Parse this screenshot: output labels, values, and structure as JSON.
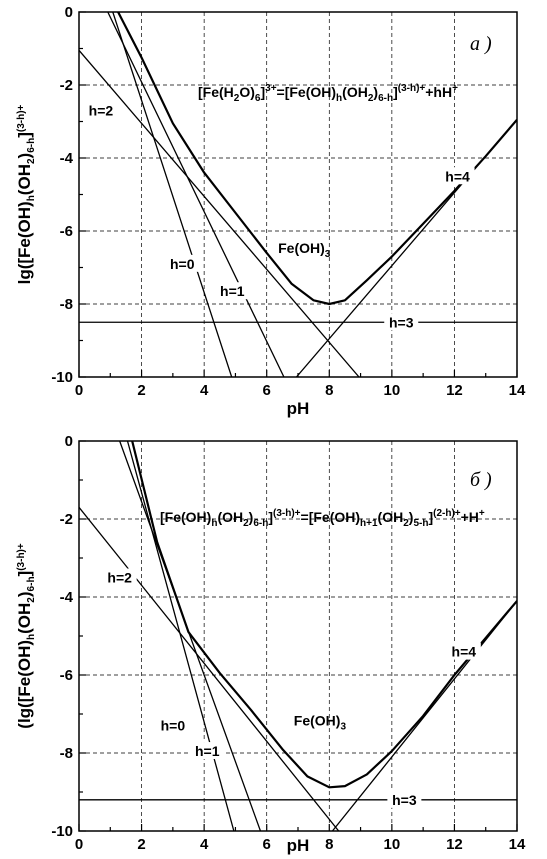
{
  "chart_data": [
    {
      "type": "line",
      "panel_letter": "a )",
      "xlabel": "pH",
      "ylabel": "lg([Fe(OH)h(OH2)6-h](3-h)+",
      "ylabel_parts": [
        {
          "t": "lg([Fe(OH)",
          "k": "n"
        },
        {
          "t": "h",
          "k": "sub"
        },
        {
          "t": "(OH",
          "k": "n"
        },
        {
          "t": "2",
          "k": "sub"
        },
        {
          "t": ")",
          "k": "n"
        },
        {
          "t": "6-h",
          "k": "sub"
        },
        {
          "t": "]",
          "k": "n"
        },
        {
          "t": "(3-h)+",
          "k": "sup"
        }
      ],
      "equation": "[Fe(H2O)6]3+=[Fe(OH)h(OH2)6-h](3-h)++hH+",
      "equation_parts": [
        {
          "t": "[Fe(H",
          "k": "n"
        },
        {
          "t": "2",
          "k": "sub"
        },
        {
          "t": "O)",
          "k": "n"
        },
        {
          "t": "6",
          "k": "sub"
        },
        {
          "t": "]",
          "k": "n"
        },
        {
          "t": "3+",
          "k": "sup"
        },
        {
          "t": "=[Fe(OH)",
          "k": "n"
        },
        {
          "t": "h",
          "k": "sub"
        },
        {
          "t": "(OH",
          "k": "n"
        },
        {
          "t": "2",
          "k": "sub"
        },
        {
          "t": ")",
          "k": "n"
        },
        {
          "t": "6-h",
          "k": "sub"
        },
        {
          "t": "]",
          "k": "n"
        },
        {
          "t": "(3-h)+",
          "k": "sup"
        },
        {
          "t": "+hH",
          "k": "n"
        },
        {
          "t": "+",
          "k": "sup"
        }
      ],
      "xlim": [
        0,
        14
      ],
      "ylim": [
        -10,
        0
      ],
      "xticks": [
        0,
        2,
        4,
        6,
        8,
        10,
        12,
        14
      ],
      "yticks": [
        0,
        -2,
        -4,
        -6,
        -8,
        -10
      ],
      "grid": true,
      "lines": [
        {
          "label": "h=0",
          "x": [
            1.08,
            4.88
          ],
          "y": [
            0,
            -10
          ]
        },
        {
          "label": "h=1",
          "x": [
            0.92,
            6.55
          ],
          "y": [
            0,
            -10
          ]
        },
        {
          "label": "h=2",
          "x": [
            0,
            8.95
          ],
          "y": [
            -1.05,
            -10
          ]
        },
        {
          "label": "h=3",
          "x": [
            0,
            14
          ],
          "y": [
            -8.5,
            -8.5
          ]
        },
        {
          "label": "h=4",
          "x": [
            6.95,
            14
          ],
          "y": [
            -10,
            -2.95
          ]
        }
      ],
      "envelope": {
        "label": "Fe(OH)3",
        "x": [
          1.25,
          2.0,
          3.0,
          4.0,
          5.0,
          6.0,
          6.8,
          7.5,
          8.0,
          8.5,
          9.2,
          10.0,
          11.0,
          12.0,
          13.0,
          14.0
        ],
        "y": [
          0,
          -1.25,
          -3.05,
          -4.4,
          -5.5,
          -6.6,
          -7.45,
          -7.9,
          -8.0,
          -7.9,
          -7.35,
          -6.7,
          -5.8,
          -4.9,
          -3.95,
          -2.95
        ]
      },
      "curve_labels": [
        {
          "text": "h=2",
          "x": 0.7,
          "y": -2.7
        },
        {
          "text": "h=0",
          "x": 3.3,
          "y": -6.9
        },
        {
          "text": "h=1",
          "x": 4.9,
          "y": -7.65
        },
        {
          "text": "h=3",
          "x": 10.3,
          "y": -8.5
        },
        {
          "text": "h=4",
          "x": 12.1,
          "y": -4.5
        }
      ],
      "envelope_label_parts": [
        {
          "t": "Fe(OH)",
          "k": "n"
        },
        {
          "t": "3",
          "k": "sub"
        }
      ],
      "envelope_label_pos": {
        "x": 7.2,
        "y": -6.6
      }
    },
    {
      "type": "line",
      "panel_letter": "б )",
      "xlabel": "pH",
      "ylabel": "(lg([Fe(OH)h(OH2)6-h](3-h)+",
      "ylabel_parts": [
        {
          "t": "(lg([Fe(OH)",
          "k": "n"
        },
        {
          "t": "h",
          "k": "sub"
        },
        {
          "t": "(OH",
          "k": "n"
        },
        {
          "t": "2",
          "k": "sub"
        },
        {
          "t": ")",
          "k": "n"
        },
        {
          "t": "6-h",
          "k": "sub"
        },
        {
          "t": "]",
          "k": "n"
        },
        {
          "t": "(3-h)+",
          "k": "sup"
        }
      ],
      "equation": "[Fe(OH)h(OH2)6-h](3-h)+=[Fe(OH)h+1(OH2)5-h](2-h)++H+",
      "equation_parts": [
        {
          "t": "[Fe(OH)",
          "k": "n"
        },
        {
          "t": "h",
          "k": "sub"
        },
        {
          "t": "(OH",
          "k": "n"
        },
        {
          "t": "2",
          "k": "sub"
        },
        {
          "t": ")",
          "k": "n"
        },
        {
          "t": "6-h",
          "k": "sub"
        },
        {
          "t": "]",
          "k": "n"
        },
        {
          "t": "(3-h)+",
          "k": "sup"
        },
        {
          "t": "=[Fe(OH)",
          "k": "n"
        },
        {
          "t": "h+1",
          "k": "sub"
        },
        {
          "t": "(OH",
          "k": "n"
        },
        {
          "t": "2",
          "k": "sub"
        },
        {
          "t": ")",
          "k": "n"
        },
        {
          "t": "5-h",
          "k": "sub"
        },
        {
          "t": "]",
          "k": "n"
        },
        {
          "t": "(2-h)+",
          "k": "sup"
        },
        {
          "t": "+H",
          "k": "n"
        },
        {
          "t": "+",
          "k": "sup"
        }
      ],
      "xlim": [
        0,
        14
      ],
      "ylim": [
        -10,
        0
      ],
      "xticks": [
        0,
        2,
        4,
        6,
        8,
        10,
        12,
        14
      ],
      "yticks": [
        0,
        -2,
        -4,
        -6,
        -8,
        -10
      ],
      "grid": true,
      "lines": [
        {
          "label": "h=0",
          "x": [
            1.55,
            4.95
          ],
          "y": [
            0,
            -10
          ]
        },
        {
          "label": "h=1",
          "x": [
            1.3,
            5.8
          ],
          "y": [
            0,
            -10
          ]
        },
        {
          "label": "h=2",
          "x": [
            0,
            8.3
          ],
          "y": [
            -1.7,
            -10
          ]
        },
        {
          "label": "h=3",
          "x": [
            0,
            14
          ],
          "y": [
            -9.2,
            -9.2
          ]
        },
        {
          "label": "h=4",
          "x": [
            8.1,
            14
          ],
          "y": [
            -10,
            -4.1
          ]
        }
      ],
      "envelope": {
        "label": "Fe(OH)3",
        "x": [
          1.7,
          2.5,
          3.5,
          4.5,
          5.5,
          6.5,
          7.3,
          8.0,
          8.5,
          9.2,
          10.0,
          11.0,
          12.0,
          13.0,
          14.0
        ],
        "y": [
          0,
          -2.6,
          -4.9,
          -5.95,
          -6.9,
          -7.9,
          -8.6,
          -8.88,
          -8.85,
          -8.55,
          -7.95,
          -7.05,
          -6.0,
          -5.05,
          -4.1
        ]
      },
      "curve_labels": [
        {
          "text": "h=2",
          "x": 1.3,
          "y": -3.5
        },
        {
          "text": "h=0",
          "x": 3.0,
          "y": -7.3
        },
        {
          "text": "h=1",
          "x": 4.1,
          "y": -7.95
        },
        {
          "text": "h=3",
          "x": 10.4,
          "y": -9.2
        },
        {
          "text": "h=4",
          "x": 12.3,
          "y": -5.4
        }
      ],
      "envelope_label_parts": [
        {
          "t": "Fe(OH)",
          "k": "n"
        },
        {
          "t": "3",
          "k": "sub"
        }
      ],
      "envelope_label_pos": {
        "x": 7.7,
        "y": -7.3
      }
    }
  ]
}
